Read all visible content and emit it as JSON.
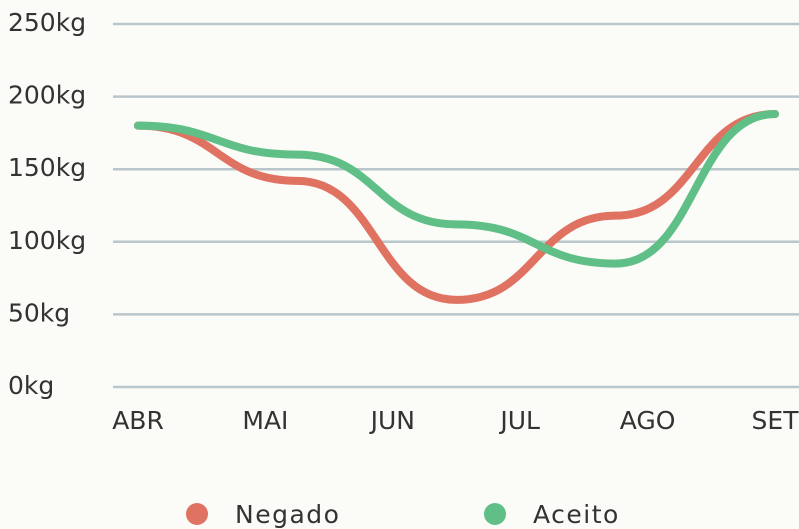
{
  "chart_data": {
    "type": "line",
    "x": [
      0,
      1.25,
      2.5,
      3.75,
      5
    ],
    "xlim": [
      0,
      5
    ],
    "xticks": [
      {
        "value": 0,
        "label": "ABR"
      },
      {
        "value": 1,
        "label": "MAI"
      },
      {
        "value": 2,
        "label": "JUN"
      },
      {
        "value": 3,
        "label": "JUL"
      },
      {
        "value": 4,
        "label": "AGO"
      },
      {
        "value": 5,
        "label": "SET"
      }
    ],
    "ylim": [
      0,
      250
    ],
    "yticks": [
      {
        "value": 0,
        "label": "0kg"
      },
      {
        "value": 50,
        "label": "50kg"
      },
      {
        "value": 100,
        "label": "100kg"
      },
      {
        "value": 150,
        "label": "150kg"
      },
      {
        "value": 200,
        "label": "200kg"
      },
      {
        "value": 250,
        "label": "250kg"
      }
    ],
    "grid": true,
    "legend": "bottom",
    "series": [
      {
        "name": "Negado",
        "color": "#e07262",
        "values": [
          180,
          142,
          60,
          118,
          188
        ]
      },
      {
        "name": "Aceito",
        "color": "#5fbf87",
        "values": [
          180,
          160,
          112,
          85,
          188
        ]
      }
    ]
  }
}
